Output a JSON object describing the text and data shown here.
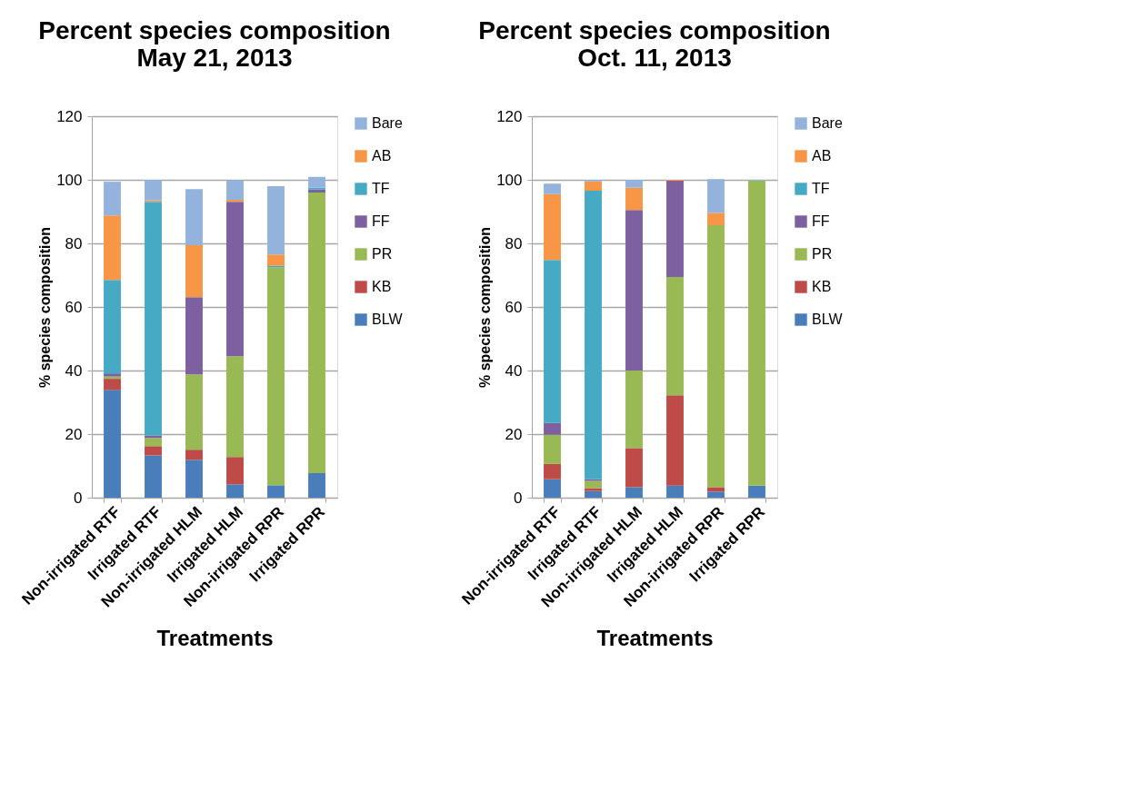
{
  "chart_data": [
    {
      "type": "bar",
      "stacked": true,
      "title": "Percent species composition May 21, 2013",
      "xlabel": "Treatments",
      "ylabel": "% species composition",
      "categories": [
        "Non-irrigated RTF",
        "Irrigated RTF",
        "Non-irrigated HLM",
        "Irrigated HLM",
        "Non-irrigated RPR",
        "Irrigated RPR"
      ],
      "series": [
        {
          "name": "BLW",
          "color": "#4a7ebb",
          "values": [
            33.9,
            13.3,
            11.9,
            4.2,
            3.9,
            7.7
          ]
        },
        {
          "name": "KB",
          "color": "#be4b48",
          "values": [
            3.5,
            2.9,
            3.2,
            8.6,
            0,
            0
          ]
        },
        {
          "name": "PR",
          "color": "#98b954",
          "values": [
            0.7,
            2.6,
            23.7,
            31.7,
            68.5,
            88.3
          ]
        },
        {
          "name": "FF",
          "color": "#7d60a0",
          "values": [
            1.0,
            0.8,
            24.3,
            48.6,
            0,
            0.9
          ]
        },
        {
          "name": "TF",
          "color": "#46aac5",
          "values": [
            29.4,
            73.5,
            0,
            0,
            0.5,
            0.6
          ]
        },
        {
          "name": "AB",
          "color": "#f79646",
          "values": [
            20.3,
            0.4,
            16.3,
            0.6,
            3.6,
            0
          ]
        },
        {
          "name": "Bare",
          "color": "#93b3dd",
          "values": [
            10.6,
            6.5,
            17.7,
            6.1,
            21.5,
            3.4
          ]
        }
      ],
      "ylim": [
        0,
        120
      ],
      "yticks": [
        0,
        20,
        40,
        60,
        80,
        100,
        120
      ],
      "grid": "y",
      "legend": "right"
    },
    {
      "type": "bar",
      "stacked": true,
      "title": "Percent species composition Oct. 11, 2013",
      "xlabel": "Treatments",
      "ylabel": "% species composition",
      "categories": [
        "Non-irrigated RTF",
        "Irrigated RTF",
        "Non-irrigated HLM",
        "Irrigated HLM",
        "Non-irrigated RPR",
        "Irrigated RPR"
      ],
      "series": [
        {
          "name": "BLW",
          "color": "#4a7ebb",
          "values": [
            5.8,
            2.1,
            3.3,
            3.8,
            1.9,
            3.8
          ]
        },
        {
          "name": "KB",
          "color": "#be4b48",
          "values": [
            4.8,
            0.9,
            12.3,
            28.4,
            1.4,
            0
          ]
        },
        {
          "name": "PR",
          "color": "#98b954",
          "values": [
            9.2,
            2.3,
            24.4,
            37.2,
            82.4,
            95.9
          ]
        },
        {
          "name": "FF",
          "color": "#7d60a0",
          "values": [
            3.7,
            0.5,
            50.5,
            30.3,
            0,
            0
          ]
        },
        {
          "name": "TF",
          "color": "#46aac5",
          "values": [
            51.3,
            90.8,
            0,
            0,
            0,
            0
          ]
        },
        {
          "name": "AB",
          "color": "#f79646",
          "values": [
            20.7,
            2.9,
            7.0,
            0.3,
            3.9,
            0
          ]
        },
        {
          "name": "Bare",
          "color": "#93b3dd",
          "values": [
            3.3,
            0.4,
            2.5,
            0,
            10.6,
            0.3
          ]
        }
      ],
      "ylim": [
        0,
        120
      ],
      "yticks": [
        0,
        20,
        40,
        60,
        80,
        100,
        120
      ],
      "grid": "y",
      "legend": "right"
    }
  ]
}
